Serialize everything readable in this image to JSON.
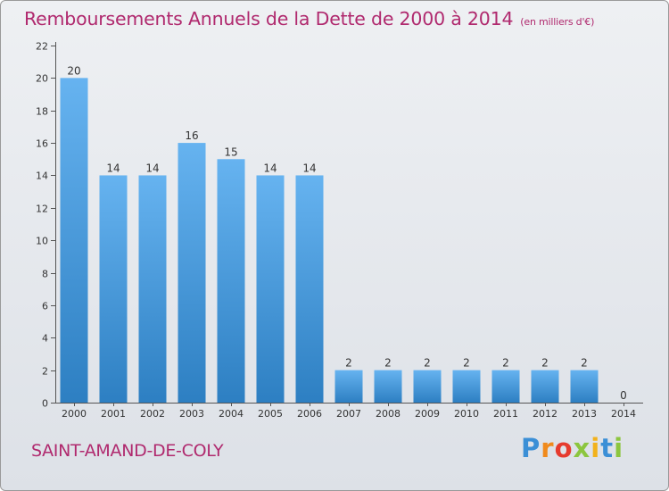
{
  "title": "Remboursements Annuels de la Dette de 2000 à 2014",
  "unit_note": "(en milliers d'€)",
  "commune": "SAINT-AMAND-DE-COLY",
  "brand": {
    "letters": [
      "P",
      "r",
      "o",
      "x",
      "i",
      "t",
      "i"
    ],
    "colors": [
      "#3b8fd6",
      "#f08a1c",
      "#e63b2e",
      "#8cc63f",
      "#f2b21c",
      "#3b8fd6",
      "#8cc63f"
    ]
  },
  "colors": {
    "title": "#b0296e",
    "bar_top": "#66b3f0",
    "bar_bottom": "#2d7fc2"
  },
  "chart_data": {
    "type": "bar",
    "categories": [
      "2000",
      "2001",
      "2002",
      "2003",
      "2004",
      "2005",
      "2006",
      "2007",
      "2008",
      "2009",
      "2010",
      "2011",
      "2012",
      "2013",
      "2014"
    ],
    "values": [
      20,
      14,
      14,
      16,
      15,
      14,
      14,
      2,
      2,
      2,
      2,
      2,
      2,
      2,
      0
    ],
    "value_labels": [
      "20",
      "14",
      "14",
      "16",
      "15",
      "14",
      "14",
      "2",
      "2",
      "2",
      "2",
      "2",
      "2",
      "2",
      "0"
    ],
    "yticks": [
      0,
      2,
      4,
      6,
      8,
      10,
      12,
      14,
      16,
      18,
      20,
      22
    ],
    "ylim": [
      0,
      22
    ],
    "grid": false,
    "legend": "none"
  }
}
